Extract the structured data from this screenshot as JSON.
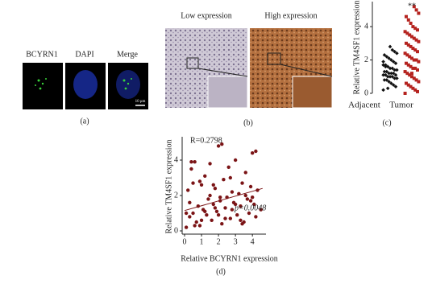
{
  "figure": {
    "panel_a": {
      "labels": [
        "BCYRN1",
        "DAPI",
        "Merge"
      ],
      "scale_bar": "10 μm",
      "caption": "(a)"
    },
    "panel_b": {
      "labels": [
        "Low expression",
        "High expression"
      ],
      "caption": "(b)"
    },
    "panel_c_caption": "(c)",
    "panel_d_caption": "(d)"
  },
  "chart_data": [
    {
      "type": "strip",
      "y_label": "Relative TM4SF1 expression",
      "categories": [
        "Adjacent",
        "Tumor"
      ],
      "annotation": "**",
      "series": [
        {
          "name": "Adjacent",
          "color": "#111111",
          "values": [
            0.2,
            0.4,
            0.5,
            0.6,
            0.7,
            0.8,
            0.8,
            0.9,
            0.9,
            1.0,
            1.0,
            1.0,
            1.1,
            1.1,
            1.1,
            1.2,
            1.2,
            1.2,
            1.3,
            1.3,
            1.4,
            1.4,
            1.5,
            1.5,
            1.6,
            1.6,
            1.7,
            1.8,
            1.9,
            2.0,
            2.1,
            2.2,
            2.3,
            2.4,
            2.5,
            2.6,
            2.8,
            0.3,
            1.7,
            1.9
          ]
        },
        {
          "name": "Tumor",
          "color": "#b5231f",
          "values": [
            0.0,
            0.1,
            0.2,
            0.3,
            0.4,
            0.5,
            0.6,
            0.7,
            0.8,
            0.9,
            1.0,
            1.1,
            1.2,
            1.3,
            1.4,
            1.5,
            1.5,
            1.6,
            1.7,
            1.8,
            1.9,
            2.0,
            2.0,
            2.1,
            2.2,
            2.3,
            2.4,
            2.5,
            2.6,
            2.7,
            2.8,
            2.9,
            3.0,
            3.1,
            3.2,
            3.3,
            3.4,
            3.5,
            3.6,
            3.7,
            3.8,
            3.9,
            4.0,
            4.2,
            4.4,
            4.6,
            4.8,
            5.0,
            5.2,
            1.2
          ]
        }
      ],
      "ylim": [
        0,
        5.5
      ],
      "yticks": [
        0,
        2,
        4
      ]
    },
    {
      "type": "scatter",
      "x_label": "Relative BCYRN1 expression",
      "y_label": "Relative TM4SF1 expression",
      "annotations": [
        "R=0.2798",
        "p=0.0048"
      ],
      "color": "#7b1416",
      "x": [
        0.1,
        0.2,
        0.3,
        0.4,
        0.5,
        0.6,
        0.7,
        0.8,
        0.9,
        1.0,
        1.1,
        1.2,
        1.3,
        1.4,
        1.5,
        1.6,
        1.7,
        1.8,
        1.9,
        2.0,
        2.1,
        2.2,
        2.3,
        2.4,
        2.5,
        2.6,
        2.7,
        2.8,
        2.9,
        3.0,
        3.1,
        3.2,
        3.3,
        3.4,
        3.5,
        3.6,
        3.7,
        3.8,
        3.9,
        4.0,
        4.1,
        4.2,
        4.3,
        4.5,
        0.3,
        0.6,
        0.9,
        1.2,
        1.5,
        1.8,
        2.1,
        2.4,
        2.7,
        3.0,
        3.3,
        3.6,
        3.9,
        4.2,
        0.1,
        0.5,
        1.0,
        1.7,
        2.2,
        2.8,
        3.4,
        4.0,
        0.4,
        2.0
      ],
      "y": [
        0.2,
        2.3,
        0.8,
        3.5,
        1.0,
        3.9,
        0.5,
        1.4,
        0.3,
        2.6,
        1.2,
        3.1,
        0.9,
        1.8,
        2.0,
        0.6,
        1.5,
        2.4,
        1.1,
        4.8,
        1.7,
        0.4,
        2.9,
        1.3,
        1.9,
        3.6,
        0.7,
        2.2,
        1.6,
        4.0,
        0.9,
        2.1,
        1.4,
        2.7,
        0.5,
        3.3,
        1.8,
        1.0,
        2.5,
        4.4,
        1.5,
        0.8,
        2.3,
        1.2,
        1.6,
        0.3,
        2.8,
        1.1,
        3.8,
        1.3,
        1.9,
        0.7,
        3.0,
        1.5,
        0.6,
        2.0,
        1.7,
        4.5,
        1.0,
        2.7,
        0.6,
        2.6,
        4.9,
        1.2,
        0.4,
        1.9,
        3.9,
        0.9
      ],
      "fit": {
        "x": [
          0,
          4.6
        ],
        "y": [
          1.15,
          2.4
        ]
      },
      "xlim": [
        0,
        4.8
      ],
      "xticks": [
        0,
        1,
        2,
        3,
        4
      ],
      "ylim": [
        0,
        5
      ],
      "yticks": [
        0,
        2,
        4
      ]
    }
  ]
}
